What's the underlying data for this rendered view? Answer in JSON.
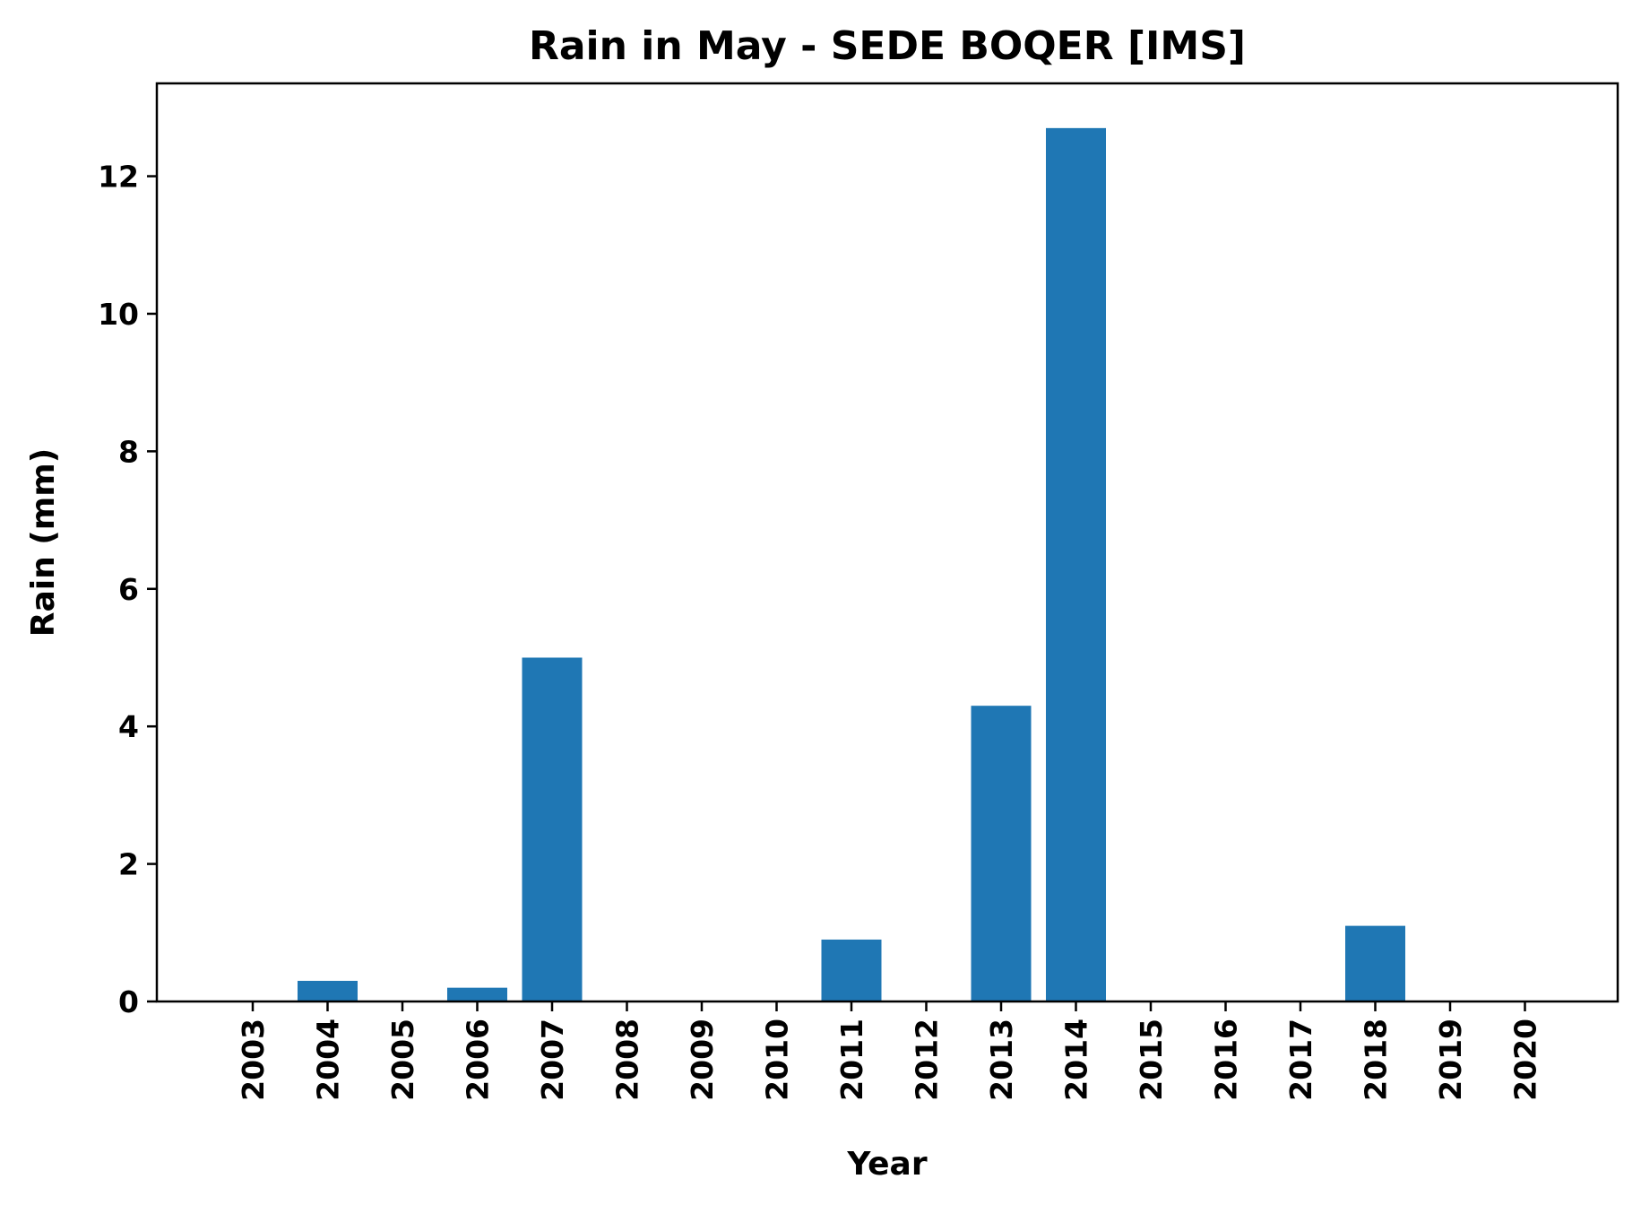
{
  "chart_data": {
    "type": "bar",
    "title": "Rain in May - SEDE BOQER [IMS]",
    "xlabel": "Year",
    "ylabel": "Rain (mm)",
    "categories": [
      "2003",
      "2004",
      "2005",
      "2006",
      "2007",
      "2008",
      "2009",
      "2010",
      "2011",
      "2012",
      "2013",
      "2014",
      "2015",
      "2016",
      "2017",
      "2018",
      "2019",
      "2020"
    ],
    "values": [
      0,
      0.3,
      0,
      0.2,
      5.0,
      0,
      0,
      0,
      0.9,
      0,
      4.3,
      12.7,
      0,
      0,
      0,
      1.1,
      0,
      0
    ],
    "ylim": [
      0,
      13.35
    ],
    "yticks": [
      0,
      2,
      4,
      6,
      8,
      10,
      12
    ],
    "bar_color": "#1f77b4",
    "grid": false
  }
}
